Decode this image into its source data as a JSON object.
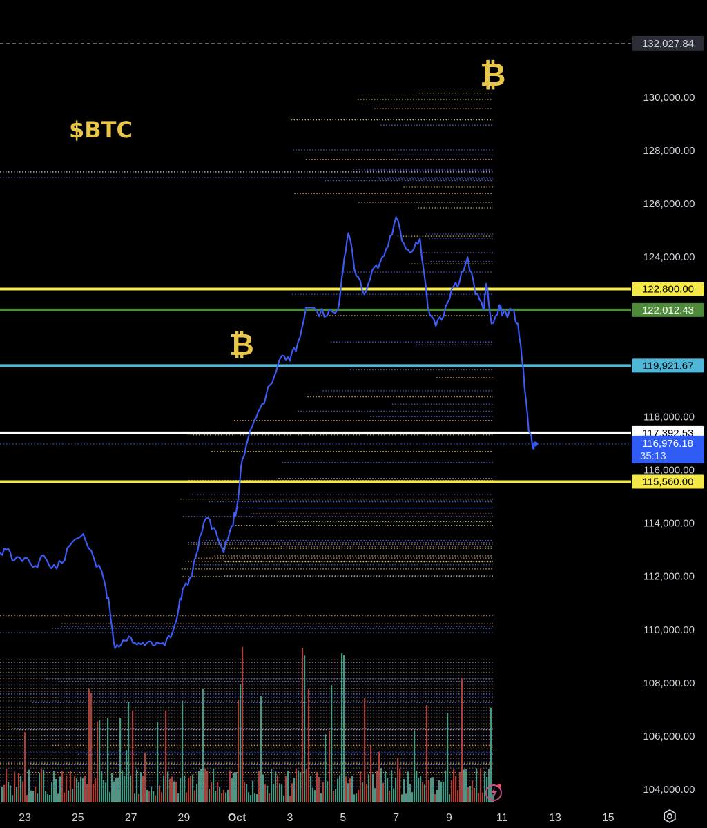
{
  "chart_data": {
    "type": "line",
    "ticker_label": "$BTC",
    "coin_symbol": "₿",
    "x_axis": {
      "ticks": [
        "23",
        "25",
        "27",
        "29",
        "Oct",
        "3",
        "5",
        "7",
        "9",
        "11",
        "13",
        "15"
      ],
      "range": [
        "Sep 22",
        "Oct 16"
      ]
    },
    "y_axis": {
      "ticks": [
        "104,000.00",
        "106,000.00",
        "108,000.00",
        "110,000.00",
        "112,000.00",
        "114,000.00",
        "116,000.00",
        "118,000.00",
        "124,000.00",
        "126,000.00",
        "128,000.00",
        "130,000.00"
      ],
      "range": [
        103500,
        133200
      ]
    },
    "price_series": {
      "name": "",
      "color": "#3a5cf5",
      "points": [
        [
          22.0,
          112900
        ],
        [
          22.3,
          113000
        ],
        [
          22.6,
          112600
        ],
        [
          23.0,
          112700
        ],
        [
          23.4,
          112400
        ],
        [
          23.7,
          112800
        ],
        [
          24.0,
          112300
        ],
        [
          24.4,
          112500
        ],
        [
          24.8,
          113300
        ],
        [
          25.2,
          113600
        ],
        [
          25.6,
          112700
        ],
        [
          26.0,
          111800
        ],
        [
          26.2,
          110800
        ],
        [
          26.4,
          109300
        ],
        [
          26.7,
          109600
        ],
        [
          27.0,
          109700
        ],
        [
          27.3,
          109500
        ],
        [
          27.6,
          109500
        ],
        [
          27.9,
          109400
        ],
        [
          28.2,
          109500
        ],
        [
          28.5,
          109700
        ],
        [
          28.8,
          110800
        ],
        [
          29.0,
          111600
        ],
        [
          29.3,
          112000
        ],
        [
          29.6,
          113500
        ],
        [
          29.9,
          114200
        ],
        [
          30.2,
          113700
        ],
        [
          30.5,
          112900
        ],
        [
          30.8,
          113900
        ],
        [
          31.0,
          114600
        ],
        [
          31.2,
          116400
        ],
        [
          31.5,
          117500
        ],
        [
          31.8,
          118200
        ],
        [
          32.1,
          118800
        ],
        [
          32.4,
          119500
        ],
        [
          32.7,
          120300
        ],
        [
          33.0,
          120100
        ],
        [
          33.3,
          120800
        ],
        [
          33.6,
          122100
        ],
        [
          34.0,
          122000
        ],
        [
          34.4,
          121800
        ],
        [
          34.8,
          122000
        ],
        [
          35.0,
          123500
        ],
        [
          35.2,
          124900
        ],
        [
          35.5,
          123300
        ],
        [
          35.8,
          122600
        ],
        [
          36.1,
          123500
        ],
        [
          36.4,
          123800
        ],
        [
          36.7,
          124400
        ],
        [
          37.0,
          125500
        ],
        [
          37.3,
          124500
        ],
        [
          37.6,
          124200
        ],
        [
          37.9,
          124700
        ],
        [
          38.2,
          122100
        ],
        [
          38.5,
          121400
        ],
        [
          38.8,
          121800
        ],
        [
          39.1,
          122800
        ],
        [
          39.4,
          123100
        ],
        [
          39.7,
          124000
        ],
        [
          40.0,
          122600
        ],
        [
          40.3,
          122000
        ],
        [
          40.4,
          123000
        ],
        [
          40.6,
          121500
        ],
        [
          40.9,
          122200
        ],
        [
          41.0,
          121800
        ],
        [
          41.4,
          122000
        ],
        [
          41.6,
          121500
        ],
        [
          41.8,
          119800
        ],
        [
          42.0,
          117500
        ],
        [
          42.2,
          116800
        ]
      ]
    },
    "current_price": "116,976.18",
    "countdown": "35:13",
    "top_dashed_label": "132,027.84",
    "horizontal_levels": [
      {
        "label": "122,800.00",
        "value": 122800,
        "color": "#f5e94a",
        "text_color": "#000000"
      },
      {
        "label": "122,012.43",
        "value": 122012.43,
        "color": "#4e8a3a",
        "text_color": "#ffffff"
      },
      {
        "label": "119,921.67",
        "value": 119921.67,
        "color": "#4fb8d8",
        "text_color": "#000000"
      },
      {
        "label": "117,392.53",
        "value": 117392.53,
        "color": "#ffffff",
        "text_color": "#000000"
      },
      {
        "label": "115,560.00",
        "value": 115560,
        "color": "#f5e94a",
        "text_color": "#000000"
      }
    ],
    "volume_colors": {
      "up": "#4da891",
      "down": "#c0453b"
    },
    "grid": false,
    "legend": "none"
  },
  "ui": {
    "settings_icon": "settings-gear-icon",
    "replay_icon": "lightning-replay-icon"
  }
}
